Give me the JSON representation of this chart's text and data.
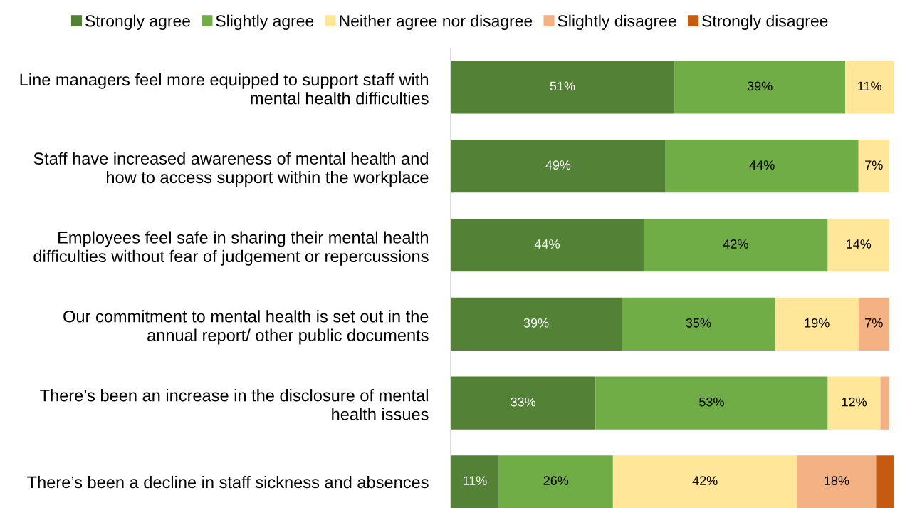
{
  "chart_data": {
    "type": "bar",
    "orientation": "horizontal",
    "stacked": true,
    "legend": "top",
    "tick_labels": "y",
    "grid": false,
    "categories": [
      "Line managers feel more equipped to support staff with\nmental health difficulties",
      "Staff have increased awareness of mental health and\nhow to access support within the workplace",
      "Employees feel safe in sharing their mental health\ndifficulties without fear of judgement or repercussions",
      "Our commitment to mental health is set out in the\nannual report/ other public documents",
      "There’s been an increase in the disclosure of mental\nhealth issues",
      "There’s been a decline in staff sickness and absences"
    ],
    "series": [
      {
        "name": "Strongly agree",
        "color": "#538135",
        "values": [
          51,
          49,
          44,
          39,
          33,
          11
        ],
        "value_labels": [
          "51%",
          "49%",
          "44%",
          "39%",
          "33%",
          "11%"
        ]
      },
      {
        "name": "Slightly agree",
        "color": "#70ad47",
        "values": [
          39,
          44,
          42,
          35,
          53,
          26
        ],
        "value_labels": [
          "39%",
          "44%",
          "42%",
          "35%",
          "53%",
          "26%"
        ]
      },
      {
        "name": "Neither agree nor disagree",
        "color": "#ffe699",
        "values": [
          11,
          7,
          14,
          19,
          12,
          42
        ],
        "value_labels": [
          "11%",
          "7%",
          "14%",
          "19%",
          "12%",
          "42%"
        ]
      },
      {
        "name": "Slightly disagree",
        "color": "#f4b183",
        "values": [
          0,
          0,
          0,
          7,
          2,
          18
        ],
        "value_labels": [
          null,
          null,
          null,
          "7%",
          null,
          "18%"
        ]
      },
      {
        "name": "Strongly disagree",
        "color": "#c55a11",
        "values": [
          0,
          0,
          0,
          0,
          0,
          4
        ],
        "value_labels": [
          null,
          null,
          null,
          null,
          null,
          null
        ]
      }
    ]
  }
}
